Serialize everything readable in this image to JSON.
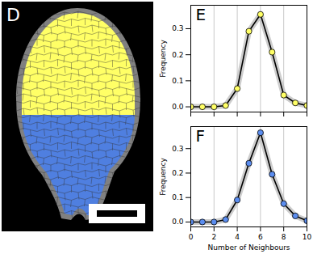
{
  "chart_data": [
    {
      "type": "line",
      "title": "E",
      "y_label": "Frequency",
      "x": [
        0,
        1,
        2,
        3,
        4,
        5,
        6,
        7,
        8,
        9,
        10
      ],
      "series": [
        {
          "name": "E",
          "color": "#ffff66",
          "marker": "circle",
          "values": [
            0.0,
            0.0,
            0.0,
            0.005,
            0.07,
            0.29,
            0.355,
            0.21,
            0.045,
            0.015,
            0.005
          ]
        }
      ],
      "xlim": [
        0,
        10
      ],
      "xticks": [
        0,
        2,
        4,
        6,
        8,
        10
      ],
      "ylim": [
        -0.02,
        0.39
      ],
      "yticks": [
        {
          "value": 0,
          "label": "0.0"
        },
        {
          "value": 0.1,
          "label": "0.1"
        },
        {
          "value": 0.2,
          "label": "0.2"
        },
        {
          "value": 0.3,
          "label": "0.3"
        }
      ],
      "grid": true,
      "tick_labels": "y"
    },
    {
      "type": "line",
      "title": "F",
      "x_label": "Number of Neighbours",
      "y_label": "Frequency",
      "x": [
        0,
        1,
        2,
        3,
        4,
        5,
        6,
        7,
        8,
        9,
        10
      ],
      "series": [
        {
          "name": "F",
          "color": "#5b8def",
          "marker": "circle",
          "values": [
            0.0,
            0.0,
            0.0,
            0.01,
            0.09,
            0.24,
            0.365,
            0.195,
            0.075,
            0.025,
            0.005
          ]
        }
      ],
      "xlim": [
        0,
        10
      ],
      "xticks": [
        0,
        2,
        4,
        6,
        8,
        10
      ],
      "ylim": [
        -0.02,
        0.39
      ],
      "yticks": [
        {
          "value": 0,
          "label": "0.0"
        },
        {
          "value": 0.1,
          "label": "0.1"
        },
        {
          "value": 0.2,
          "label": "0.2"
        },
        {
          "value": 0.3,
          "label": "0.3"
        }
      ],
      "grid": true
    }
  ],
  "image_panel": {
    "label": "D",
    "upper_color": "#ffff66",
    "lower_color": "#4f7fe0"
  }
}
